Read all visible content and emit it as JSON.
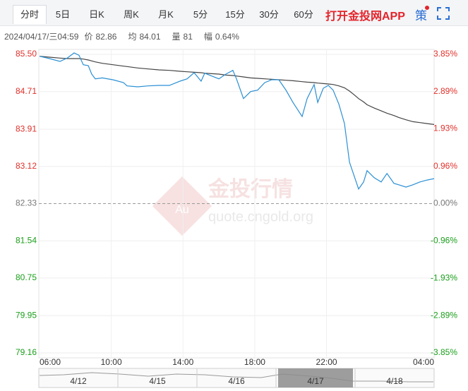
{
  "tabs": [
    "分时",
    "5日",
    "日K",
    "周K",
    "月K",
    "5分",
    "15分",
    "30分",
    "60分"
  ],
  "selected_tab": 0,
  "app_link": "打开金投网APP",
  "strategy": "策",
  "info": {
    "datetime": "2024/04/17/三04:59",
    "items": [
      {
        "label": "价",
        "value": 82.86
      },
      {
        "label": "均",
        "value": 84.01
      },
      {
        "label": "量",
        "value": 81
      },
      {
        "label": "幅",
        "value": "0.64%"
      }
    ]
  },
  "watermark": {
    "title": "金投行情",
    "url": "quote.cngold.org",
    "logo": "Au"
  },
  "navigator": {
    "labels": [
      "4/12",
      "4/15",
      "4/16",
      "4/17",
      "4/18"
    ],
    "selected": 3
  },
  "chart_data": {
    "type": "line",
    "x": [
      6.0,
      6.55,
      7.14,
      7.54,
      7.93,
      8.2,
      8.44,
      8.72,
      8.91,
      9.11,
      9.5,
      10.09,
      10.68,
      10.88,
      11.47,
      12.06,
      12.65,
      13.24,
      13.83,
      14.23,
      14.62,
      15.01,
      15.21,
      15.6,
      16.0,
      16.39,
      16.78,
      16.98,
      17.37,
      17.77,
      18.16,
      18.56,
      18.95,
      19.34,
      19.74,
      20.13,
      20.64,
      20.92,
      21.31,
      21.51,
      21.82,
      22.1,
      22.37,
      22.69,
      23.0,
      23.28,
      23.55,
      23.79,
      24.07,
      24.26,
      24.66,
      25.05,
      25.37,
      25.76,
      26.03,
      26.43,
      26.82,
      27.21,
      27.61,
      28.0
    ],
    "series": [
      {
        "name": "价",
        "color": "#2a8fd4",
        "values": [
          85.46,
          85.41,
          85.35,
          85.42,
          85.53,
          85.48,
          85.28,
          85.26,
          85.08,
          84.98,
          85.0,
          84.96,
          84.9,
          84.83,
          84.81,
          84.83,
          84.84,
          84.84,
          84.93,
          84.98,
          85.11,
          84.93,
          85.1,
          85.04,
          84.98,
          85.08,
          85.16,
          84.98,
          84.56,
          84.71,
          84.74,
          84.9,
          84.96,
          84.96,
          84.74,
          84.48,
          84.18,
          84.56,
          84.86,
          84.48,
          84.78,
          84.84,
          84.74,
          84.44,
          84.03,
          83.21,
          82.91,
          82.64,
          82.79,
          83.03,
          82.88,
          82.79,
          82.97,
          82.76,
          82.73,
          82.68,
          82.73,
          82.79,
          82.83,
          82.86
        ]
      },
      {
        "name": "均",
        "color": "#444444",
        "values": [
          85.46,
          85.44,
          85.42,
          85.41,
          85.41,
          85.41,
          85.4,
          85.38,
          85.36,
          85.34,
          85.31,
          85.28,
          85.25,
          85.24,
          85.21,
          85.19,
          85.17,
          85.16,
          85.14,
          85.13,
          85.12,
          85.11,
          85.1,
          85.09,
          85.08,
          85.06,
          85.05,
          85.04,
          85.02,
          85.0,
          84.99,
          84.98,
          84.97,
          84.96,
          84.95,
          84.94,
          84.92,
          84.91,
          84.9,
          84.89,
          84.88,
          84.87,
          84.86,
          84.83,
          84.79,
          84.72,
          84.64,
          84.56,
          84.49,
          84.43,
          84.36,
          84.3,
          84.25,
          84.2,
          84.16,
          84.11,
          84.07,
          84.05,
          84.03,
          84.01
        ]
      }
    ],
    "xlim": [
      6,
      28
    ],
    "xticks": [
      {
        "value": 6,
        "label": "06:00"
      },
      {
        "value": 10,
        "label": "10:00"
      },
      {
        "value": 14,
        "label": "14:00"
      },
      {
        "value": 18,
        "label": "18:00"
      },
      {
        "value": 22,
        "label": "22:00"
      },
      {
        "value": 28,
        "label": "04:00"
      }
    ],
    "ylim": [
      79.16,
      85.5
    ],
    "yticks": [
      {
        "value": 85.5,
        "label": "85.50"
      },
      84.71,
      83.91,
      83.12,
      82.33,
      81.54,
      80.75,
      79.95,
      79.16
    ],
    "y2lim": [
      -3.85,
      3.85
    ],
    "y2ticks": [
      {
        "value": 3.85,
        "label": "3.85%"
      },
      {
        "value": 2.89,
        "label": "2.89%"
      },
      {
        "value": 1.93,
        "label": "1.93%"
      },
      {
        "value": 0.96,
        "label": "0.96%"
      },
      {
        "value": 0,
        "label": "0.00%"
      },
      {
        "value": -0.96,
        "label": "-0.96%"
      },
      {
        "value": -1.93,
        "label": "-1.93%"
      },
      {
        "value": -2.89,
        "label": "-2.89%"
      },
      {
        "value": -3.85,
        "label": "-3.85%"
      }
    ],
    "grid": true,
    "up_color": "#e0302a",
    "down_color": "#1a9e1a",
    "flat_color": "#777777"
  }
}
